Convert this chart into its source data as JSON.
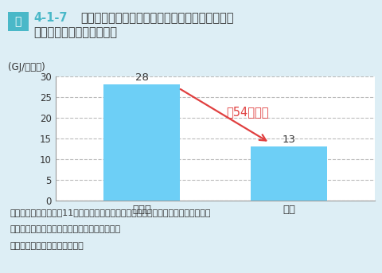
{
  "title_fig_label": "図",
  "title_fig_number": "4-1-7",
  "title_line1": "年間冷暖房エネルギー消費量の高断熱高気密住宅",
  "title_line2": "と無断熱住宅における比較",
  "categories": [
    "無断熱",
    "断熱"
  ],
  "values": [
    28,
    13
  ],
  "bar_color": "#6dcff6",
  "ylabel": "(GJ/年・戸)",
  "ylim": [
    0,
    30
  ],
  "yticks": [
    0,
    5,
    10,
    15,
    20,
    25,
    30
  ],
  "annotation_text": "約54％削減",
  "annotation_color": "#e04040",
  "annotation_fontsize": 10.5,
  "note_line1": "注：省エネ基準（平成11年基準）で断熱した住宅と無断熱住宅（いずれも戸建て）",
  "note_line2": "　　について、いくつかの仮定のもとで試算。",
  "source": "資料：国土交通省資料より作成",
  "background_color": "#ddeef5",
  "plot_bg_color": "#ffffff",
  "fig_label_bg": "#4ab8c8",
  "fig_label_color": "#ffffff",
  "fig_number_color": "#4ab8c8",
  "title_color": "#333333",
  "title_fontsize": 10.5,
  "label_fontsize": 9.5,
  "note_fontsize": 8.0,
  "value_fontsize": 9.5,
  "tick_fontsize": 8.5,
  "ylabel_fontsize": 8.5
}
